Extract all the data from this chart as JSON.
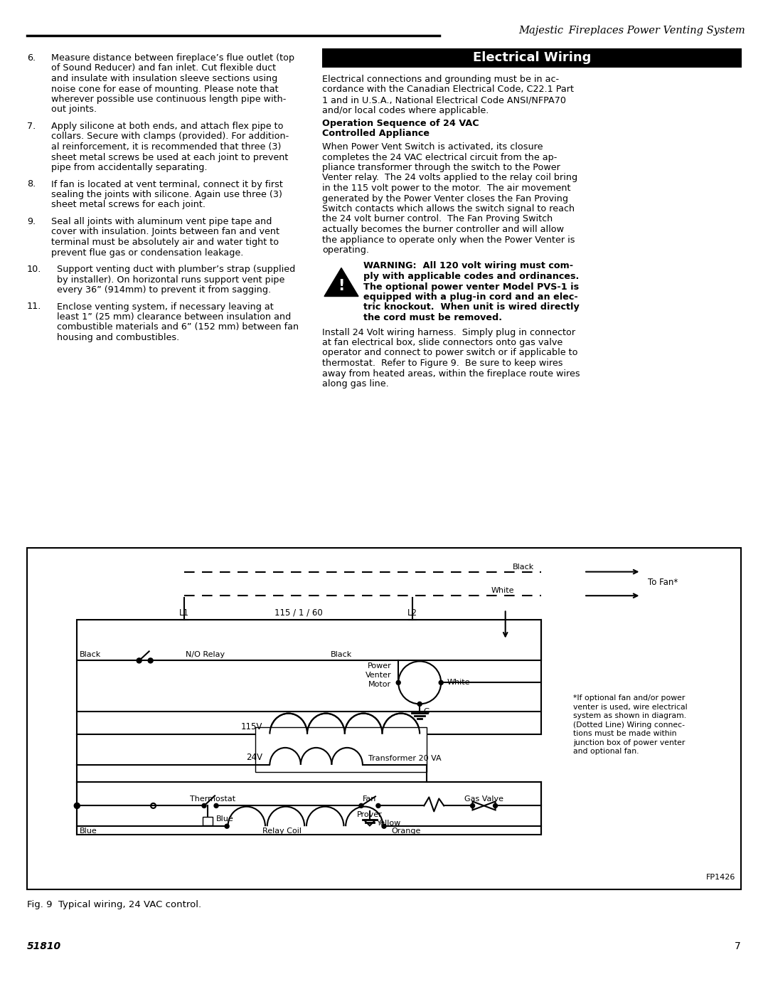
{
  "page_title": "Majestic  Fireplaces Power Venting System",
  "bg_color": "#ffffff",
  "left_items": [
    [
      "6.",
      "Measure distance between fireplace’s flue outlet (top\nof Sound Reducer) and fan inlet. Cut flexible duct\nand insulate with insulation sleeve sections using\nnoise cone for ease of mounting. Please note that\nwherever possible use continuous length pipe with-\nout joints."
    ],
    [
      "7.",
      "Apply silicone at both ends, and attach flex pipe to\ncollars. Secure with clamps (provided). For addition-\nal reinforcement, it is recommended that three (3)\nsheet metal screws be used at each joint to prevent\npipe from accidentally separating."
    ],
    [
      "8.",
      "If fan is located at vent terminal, connect it by first\nsealing the joints with silicone. Again use three (3)\nsheet metal screws for each joint."
    ],
    [
      "9.",
      "Seal all joints with aluminum vent pipe tape and\ncover with insulation. Joints between fan and vent\nterminal must be absolutely air and water tight to\nprevent flue gas or condensation leakage."
    ],
    [
      "10.",
      "Support venting duct with plumber’s strap (supplied\nby installer). On horizontal runs support vent pipe\nevery 36” (914mm) to prevent it from sagging."
    ],
    [
      "11.",
      "Enclose venting system, if necessary leaving at\nleast 1” (25 mm) clearance between insulation and\ncombustible materials and 6” (152 mm) between fan\nhousing and combustibles."
    ]
  ],
  "elec_header": "Electrical Wiring",
  "p1_lines": [
    "Electrical connections and grounding must be in ac-",
    "cordance with the Canadian Electrical Code, C22.1 Part",
    "1 and in U.S.A., National Electrical Code ANSI/NFPA70",
    "and/or local codes where applicable."
  ],
  "subhead1": "Operation Sequence of 24 VAC",
  "subhead2": "Controlled Appliance",
  "p2_lines": [
    "When Power Vent Switch is activated, its closure",
    "completes the 24 VAC electrical circuit from the ap-",
    "pliance transformer through the switch to the Power",
    "Venter relay.  The 24 volts applied to the relay coil bring",
    "in the 115 volt power to the motor.  The air movement",
    "generated by the Power Venter closes the Fan Proving",
    "Switch contacts which allows the switch signal to reach",
    "the 24 volt burner control.  The Fan Proving Switch",
    "actually becomes the burner controller and will allow",
    "the appliance to operate only when the Power Venter is",
    "operating."
  ],
  "warn_lines": [
    "WARNING:  All 120 volt wiring must com-",
    "ply with applicable codes and ordinances.",
    "The optional power venter Model PVS-1 is",
    "equipped with a plug-in cord and an elec-",
    "tric knockout.  When unit is wired directly",
    "the cord must be removed."
  ],
  "p3_lines": [
    "Install 24 Volt wiring harness.  Simply plug in connector",
    "at fan electrical box, slide connectors onto gas valve",
    "operator and connect to power switch or if applicable to",
    "thermostat.  Refer to Figure 9.  Be sure to keep wires",
    "away from heated areas, within the fireplace route wires",
    "along gas line."
  ],
  "note_lines": [
    "*If optional fan and/or power",
    "venter is used, wire electrical",
    "system as shown in diagram.",
    "(Dotted Line) Wiring connec-",
    "tions must be made within",
    "junction box of power venter",
    "and optional fan."
  ],
  "fig_caption": "Fig. 9  Typical wiring, 24 VAC control.",
  "page_num": "7",
  "page_code": "51810",
  "fp_label": "FP1426",
  "body_fs": 9.2,
  "lh": 14.5
}
